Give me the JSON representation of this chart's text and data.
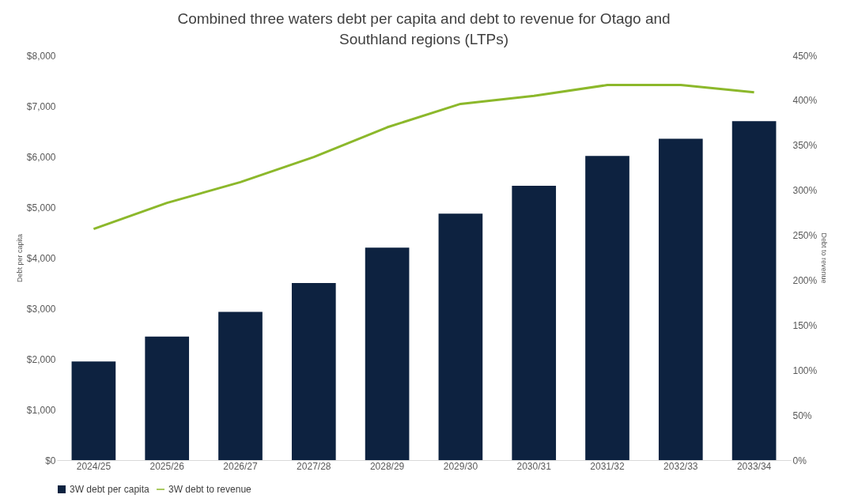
{
  "chart_data": {
    "type": "bar",
    "title": "Combined three waters debt per capita and debt to revenue for Otago and Southland regions (LTPs)",
    "categories": [
      "2024/25",
      "2025/26",
      "2026/27",
      "2027/28",
      "2028/29",
      "2029/30",
      "2030/31",
      "2031/32",
      "2032/33",
      "2033/34"
    ],
    "series": [
      {
        "name": "3W debt per capita",
        "color": "#0d2240",
        "values": [
          1950,
          2440,
          2930,
          3500,
          4200,
          4870,
          5420,
          6010,
          6350,
          6700
        ]
      },
      {
        "name": "3W debt to revenue",
        "type": "line",
        "axis": "y2",
        "color": "#8cb82b",
        "values": [
          257,
          286,
          309,
          337,
          370,
          396,
          405,
          417,
          417,
          409
        ]
      }
    ],
    "ylabel": "Debt per capita",
    "y2label": "Debt to revenue",
    "ylim": [
      0,
      8000
    ],
    "yticks": [
      {
        "value": 0,
        "label": "$0"
      },
      {
        "value": 1000,
        "label": "$1,000"
      },
      {
        "value": 2000,
        "label": "$2,000"
      },
      {
        "value": 3000,
        "label": "$3,000"
      },
      {
        "value": 4000,
        "label": "$4,000"
      },
      {
        "value": 5000,
        "label": "$5,000"
      },
      {
        "value": 6000,
        "label": "$6,000"
      },
      {
        "value": 7000,
        "label": "$7,000"
      },
      {
        "value": 8000,
        "label": "$8,000"
      }
    ],
    "y2lim": [
      0,
      450
    ],
    "y2ticks": [
      {
        "value": 0,
        "label": "0%"
      },
      {
        "value": 50,
        "label": "50%"
      },
      {
        "value": 100,
        "label": "100%"
      },
      {
        "value": 150,
        "label": "150%"
      },
      {
        "value": 200,
        "label": "200%"
      },
      {
        "value": 250,
        "label": "250%"
      },
      {
        "value": 300,
        "label": "300%"
      },
      {
        "value": 350,
        "label": "350%"
      },
      {
        "value": 400,
        "label": "400%"
      },
      {
        "value": 450,
        "label": "450%"
      }
    ],
    "grid": false,
    "legend": "bottom"
  }
}
